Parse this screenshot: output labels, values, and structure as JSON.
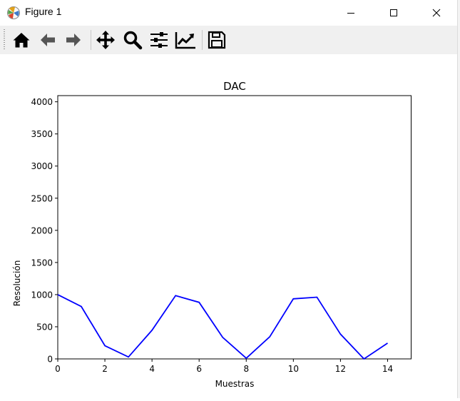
{
  "window": {
    "title": "Figure 1",
    "icon": "matplotlib-icon",
    "controls": [
      "minimize-icon",
      "maximize-icon",
      "close-icon"
    ]
  },
  "toolbar": {
    "buttons": [
      {
        "name": "home-button",
        "icon": "home-icon"
      },
      {
        "name": "back-button",
        "icon": "arrow-left-icon"
      },
      {
        "name": "forward-button",
        "icon": "arrow-right-icon"
      },
      {
        "name": "pan-button",
        "icon": "move-icon"
      },
      {
        "name": "zoom-button",
        "icon": "magnifier-icon"
      },
      {
        "name": "subplots-button",
        "icon": "sliders-icon"
      },
      {
        "name": "edit-axis-button",
        "icon": "chart-line-icon"
      },
      {
        "name": "save-button",
        "icon": "floppy-disk-icon"
      }
    ]
  },
  "chart_data": {
    "type": "line",
    "title": "DAC",
    "xlabel": "Muestras",
    "ylabel": "Resolución",
    "xlim": [
      0,
      15
    ],
    "ylim": [
      0,
      4096
    ],
    "xticks": [
      0,
      2,
      4,
      6,
      8,
      10,
      12,
      14
    ],
    "yticks": [
      0,
      500,
      1000,
      1500,
      2000,
      2500,
      3000,
      3500,
      4000
    ],
    "grid": false,
    "color": "#0000ff",
    "x": [
      0,
      1,
      2,
      3,
      4,
      5,
      6,
      7,
      8,
      9,
      10,
      11,
      12,
      13,
      14
    ],
    "y": [
      1000,
      815,
      205,
      30,
      445,
      985,
      880,
      335,
      10,
      345,
      935,
      960,
      385,
      0,
      245
    ]
  }
}
